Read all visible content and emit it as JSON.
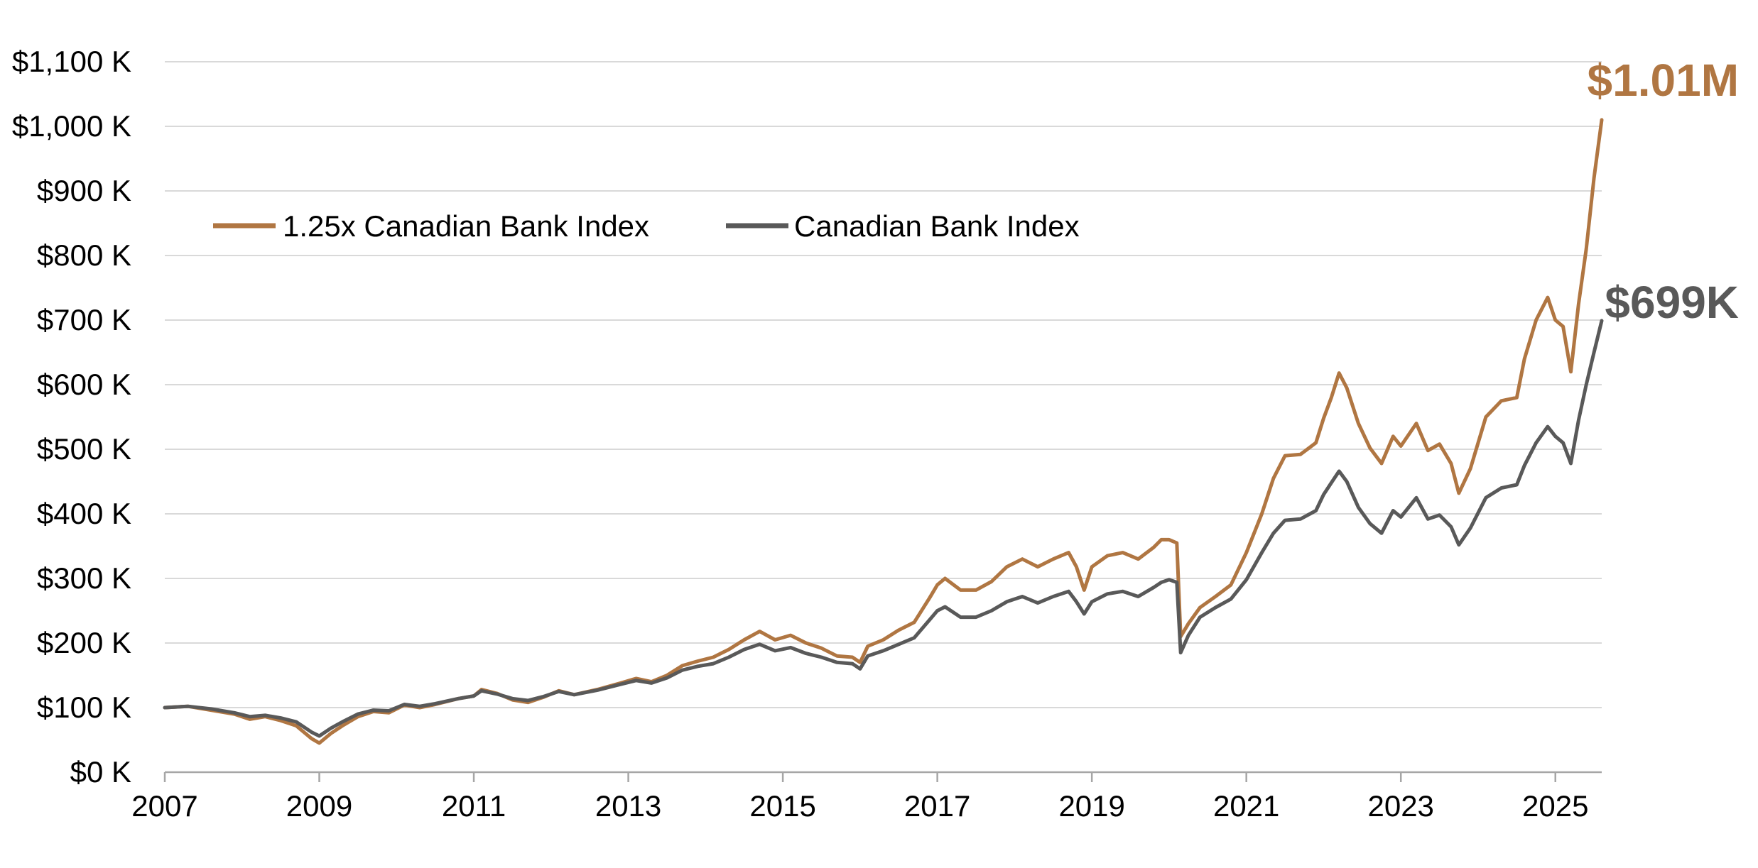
{
  "chart_data": {
    "type": "line",
    "title": "",
    "xlabel": "",
    "ylabel": "",
    "x_ticks": [
      "2007",
      "2009",
      "2011",
      "2013",
      "2015",
      "2017",
      "2019",
      "2021",
      "2023",
      "2025"
    ],
    "y_ticks": [
      "$0 K",
      "$100 K",
      "$200 K",
      "$300 K",
      "$400 K",
      "$500 K",
      "$600 K",
      "$700 K",
      "$800 K",
      "$900 K",
      "$1,000 K",
      "$1,100 K"
    ],
    "xlim": [
      2007,
      2025.6
    ],
    "ylim": [
      0,
      1100
    ],
    "grid": true,
    "legend_position": "top-left",
    "series": [
      {
        "name": "1.25x Canadian Bank Index",
        "color": "#b07642",
        "end_label": "$1.01M",
        "points": [
          [
            2007.0,
            100
          ],
          [
            2007.3,
            102
          ],
          [
            2007.6,
            96
          ],
          [
            2007.9,
            90
          ],
          [
            2008.1,
            82
          ],
          [
            2008.3,
            86
          ],
          [
            2008.5,
            80
          ],
          [
            2008.7,
            72
          ],
          [
            2008.9,
            52
          ],
          [
            2009.0,
            45
          ],
          [
            2009.15,
            60
          ],
          [
            2009.3,
            72
          ],
          [
            2009.5,
            86
          ],
          [
            2009.7,
            94
          ],
          [
            2009.9,
            92
          ],
          [
            2010.1,
            104
          ],
          [
            2010.3,
            100
          ],
          [
            2010.5,
            105
          ],
          [
            2010.8,
            114
          ],
          [
            2011.0,
            118
          ],
          [
            2011.1,
            128
          ],
          [
            2011.3,
            122
          ],
          [
            2011.5,
            112
          ],
          [
            2011.7,
            108
          ],
          [
            2011.9,
            116
          ],
          [
            2012.1,
            126
          ],
          [
            2012.3,
            120
          ],
          [
            2012.6,
            128
          ],
          [
            2012.9,
            138
          ],
          [
            2013.1,
            145
          ],
          [
            2013.3,
            140
          ],
          [
            2013.5,
            150
          ],
          [
            2013.7,
            165
          ],
          [
            2013.9,
            172
          ],
          [
            2014.1,
            178
          ],
          [
            2014.3,
            190
          ],
          [
            2014.5,
            205
          ],
          [
            2014.7,
            218
          ],
          [
            2014.9,
            205
          ],
          [
            2015.1,
            212
          ],
          [
            2015.3,
            200
          ],
          [
            2015.5,
            192
          ],
          [
            2015.7,
            180
          ],
          [
            2015.9,
            178
          ],
          [
            2016.0,
            170
          ],
          [
            2016.1,
            195
          ],
          [
            2016.3,
            205
          ],
          [
            2016.5,
            220
          ],
          [
            2016.7,
            232
          ],
          [
            2016.9,
            270
          ],
          [
            2017.0,
            290
          ],
          [
            2017.1,
            300
          ],
          [
            2017.3,
            282
          ],
          [
            2017.5,
            282
          ],
          [
            2017.7,
            295
          ],
          [
            2017.9,
            318
          ],
          [
            2018.1,
            330
          ],
          [
            2018.3,
            318
          ],
          [
            2018.5,
            330
          ],
          [
            2018.7,
            340
          ],
          [
            2018.8,
            318
          ],
          [
            2018.9,
            282
          ],
          [
            2019.0,
            318
          ],
          [
            2019.2,
            335
          ],
          [
            2019.4,
            340
          ],
          [
            2019.6,
            330
          ],
          [
            2019.8,
            348
          ],
          [
            2019.9,
            360
          ],
          [
            2020.0,
            360
          ],
          [
            2020.1,
            355
          ],
          [
            2020.15,
            210
          ],
          [
            2020.25,
            230
          ],
          [
            2020.4,
            255
          ],
          [
            2020.6,
            272
          ],
          [
            2020.8,
            290
          ],
          [
            2021.0,
            340
          ],
          [
            2021.2,
            400
          ],
          [
            2021.35,
            455
          ],
          [
            2021.5,
            490
          ],
          [
            2021.7,
            492
          ],
          [
            2021.9,
            510
          ],
          [
            2022.0,
            548
          ],
          [
            2022.1,
            580
          ],
          [
            2022.2,
            618
          ],
          [
            2022.3,
            595
          ],
          [
            2022.45,
            540
          ],
          [
            2022.6,
            502
          ],
          [
            2022.75,
            478
          ],
          [
            2022.9,
            520
          ],
          [
            2023.0,
            505
          ],
          [
            2023.2,
            540
          ],
          [
            2023.35,
            498
          ],
          [
            2023.5,
            508
          ],
          [
            2023.65,
            478
          ],
          [
            2023.75,
            432
          ],
          [
            2023.9,
            470
          ],
          [
            2024.1,
            550
          ],
          [
            2024.3,
            575
          ],
          [
            2024.5,
            580
          ],
          [
            2024.6,
            640
          ],
          [
            2024.75,
            700
          ],
          [
            2024.9,
            735
          ],
          [
            2025.0,
            700
          ],
          [
            2025.1,
            690
          ],
          [
            2025.2,
            620
          ],
          [
            2025.3,
            725
          ],
          [
            2025.4,
            810
          ],
          [
            2025.5,
            920
          ],
          [
            2025.6,
            1010
          ]
        ]
      },
      {
        "name": "Canadian Bank Index",
        "color": "#595959",
        "end_label": "$699K",
        "points": [
          [
            2007.0,
            100
          ],
          [
            2007.3,
            102
          ],
          [
            2007.6,
            98
          ],
          [
            2007.9,
            92
          ],
          [
            2008.1,
            86
          ],
          [
            2008.3,
            88
          ],
          [
            2008.5,
            84
          ],
          [
            2008.7,
            78
          ],
          [
            2008.9,
            62
          ],
          [
            2009.0,
            56
          ],
          [
            2009.15,
            68
          ],
          [
            2009.3,
            78
          ],
          [
            2009.5,
            90
          ],
          [
            2009.7,
            96
          ],
          [
            2009.9,
            95
          ],
          [
            2010.1,
            105
          ],
          [
            2010.3,
            102
          ],
          [
            2010.5,
            106
          ],
          [
            2010.8,
            114
          ],
          [
            2011.0,
            118
          ],
          [
            2011.1,
            126
          ],
          [
            2011.3,
            121
          ],
          [
            2011.5,
            114
          ],
          [
            2011.7,
            111
          ],
          [
            2011.9,
            117
          ],
          [
            2012.1,
            125
          ],
          [
            2012.3,
            120
          ],
          [
            2012.6,
            127
          ],
          [
            2012.9,
            136
          ],
          [
            2013.1,
            142
          ],
          [
            2013.3,
            138
          ],
          [
            2013.5,
            146
          ],
          [
            2013.7,
            158
          ],
          [
            2013.9,
            164
          ],
          [
            2014.1,
            168
          ],
          [
            2014.3,
            178
          ],
          [
            2014.5,
            190
          ],
          [
            2014.7,
            198
          ],
          [
            2014.9,
            188
          ],
          [
            2015.1,
            193
          ],
          [
            2015.3,
            184
          ],
          [
            2015.5,
            178
          ],
          [
            2015.7,
            170
          ],
          [
            2015.9,
            168
          ],
          [
            2016.0,
            160
          ],
          [
            2016.1,
            180
          ],
          [
            2016.3,
            188
          ],
          [
            2016.5,
            198
          ],
          [
            2016.7,
            208
          ],
          [
            2016.9,
            236
          ],
          [
            2017.0,
            250
          ],
          [
            2017.1,
            256
          ],
          [
            2017.3,
            240
          ],
          [
            2017.5,
            240
          ],
          [
            2017.7,
            250
          ],
          [
            2017.9,
            264
          ],
          [
            2018.1,
            272
          ],
          [
            2018.3,
            262
          ],
          [
            2018.5,
            272
          ],
          [
            2018.7,
            280
          ],
          [
            2018.8,
            264
          ],
          [
            2018.9,
            245
          ],
          [
            2019.0,
            264
          ],
          [
            2019.2,
            276
          ],
          [
            2019.4,
            280
          ],
          [
            2019.6,
            272
          ],
          [
            2019.8,
            286
          ],
          [
            2019.9,
            294
          ],
          [
            2020.0,
            298
          ],
          [
            2020.1,
            294
          ],
          [
            2020.15,
            185
          ],
          [
            2020.25,
            212
          ],
          [
            2020.4,
            240
          ],
          [
            2020.6,
            255
          ],
          [
            2020.8,
            268
          ],
          [
            2021.0,
            298
          ],
          [
            2021.2,
            340
          ],
          [
            2021.35,
            370
          ],
          [
            2021.5,
            390
          ],
          [
            2021.7,
            392
          ],
          [
            2021.9,
            405
          ],
          [
            2022.0,
            430
          ],
          [
            2022.1,
            448
          ],
          [
            2022.2,
            466
          ],
          [
            2022.3,
            450
          ],
          [
            2022.45,
            410
          ],
          [
            2022.6,
            385
          ],
          [
            2022.75,
            370
          ],
          [
            2022.9,
            405
          ],
          [
            2023.0,
            395
          ],
          [
            2023.2,
            425
          ],
          [
            2023.35,
            392
          ],
          [
            2023.5,
            398
          ],
          [
            2023.65,
            380
          ],
          [
            2023.75,
            352
          ],
          [
            2023.9,
            378
          ],
          [
            2024.1,
            425
          ],
          [
            2024.3,
            440
          ],
          [
            2024.5,
            445
          ],
          [
            2024.6,
            475
          ],
          [
            2024.75,
            510
          ],
          [
            2024.9,
            535
          ],
          [
            2025.0,
            520
          ],
          [
            2025.1,
            510
          ],
          [
            2025.2,
            478
          ],
          [
            2025.3,
            545
          ],
          [
            2025.4,
            600
          ],
          [
            2025.5,
            650
          ],
          [
            2025.6,
            699
          ]
        ]
      }
    ]
  }
}
